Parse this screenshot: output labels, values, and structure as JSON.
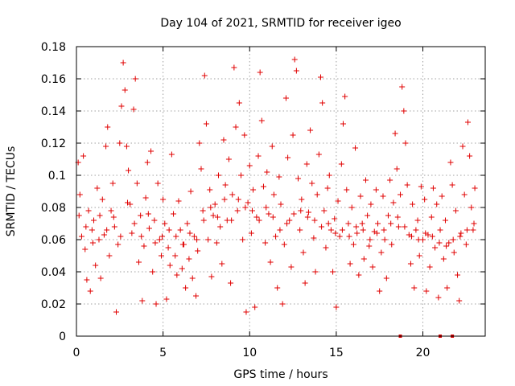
{
  "chart_data": {
    "type": "scatter",
    "title": "Day 104 of 2021, SRMTID for receiver igeo",
    "xlabel": "GPS time / hours",
    "ylabel": "SRMTID / TECUs",
    "xlim": [
      0,
      23.6
    ],
    "ylim": [
      0,
      0.18
    ],
    "x_ticks": [
      0,
      5,
      10,
      15,
      20
    ],
    "y_ticks": [
      0,
      0.02,
      0.04,
      0.06,
      0.08,
      0.1,
      0.12,
      0.14,
      0.16,
      0.18
    ],
    "y_tick_labels": [
      "0",
      "0.02",
      "0.04",
      "0.06",
      "0.08",
      "0.1",
      "0.12",
      "0.14",
      "0.16",
      "0.18"
    ],
    "grid": true,
    "marker": "plus",
    "color": "#e00000",
    "series": [
      {
        "name": "SRMTID",
        "points": [
          [
            0.1,
            0.108
          ],
          [
            0.2,
            0.088
          ],
          [
            0.3,
            0.062
          ],
          [
            0.4,
            0.112
          ],
          [
            0.5,
            0.054
          ],
          [
            0.6,
            0.035
          ],
          [
            0.7,
            0.078
          ],
          [
            0.8,
            0.028
          ],
          [
            0.9,
            0.066
          ],
          [
            1.0,
            0.072
          ],
          [
            1.1,
            0.044
          ],
          [
            1.2,
            0.092
          ],
          [
            1.3,
            0.06
          ],
          [
            1.4,
            0.036
          ],
          [
            1.5,
            0.085
          ],
          [
            1.6,
            0.063
          ],
          [
            1.7,
            0.118
          ],
          [
            1.8,
            0.13
          ],
          [
            1.9,
            0.05
          ],
          [
            2.0,
            0.078
          ],
          [
            2.1,
            0.095
          ],
          [
            2.2,
            0.068
          ],
          [
            2.3,
            0.015
          ],
          [
            2.4,
            0.057
          ],
          [
            2.5,
            0.12
          ],
          [
            2.6,
            0.143
          ],
          [
            2.7,
            0.17
          ],
          [
            2.8,
            0.153
          ],
          [
            2.9,
            0.118
          ],
          [
            3.0,
            0.103
          ],
          [
            3.1,
            0.082
          ],
          [
            3.2,
            0.064
          ],
          [
            3.3,
            0.141
          ],
          [
            3.4,
            0.16
          ],
          [
            3.5,
            0.095
          ],
          [
            3.6,
            0.046
          ],
          [
            3.7,
            0.075
          ],
          [
            3.8,
            0.022
          ],
          [
            3.9,
            0.056
          ],
          [
            4.0,
            0.086
          ],
          [
            4.1,
            0.108
          ],
          [
            4.2,
            0.067
          ],
          [
            4.3,
            0.115
          ],
          [
            4.4,
            0.04
          ],
          [
            4.5,
            0.072
          ],
          [
            4.6,
            0.02
          ],
          [
            4.7,
            0.095
          ],
          [
            4.8,
            0.06
          ],
          [
            4.9,
            0.05
          ],
          [
            5.0,
            0.085
          ],
          [
            5.1,
            0.07
          ],
          [
            5.2,
            0.023
          ],
          [
            5.3,
            0.055
          ],
          [
            5.4,
            0.044
          ],
          [
            5.5,
            0.113
          ],
          [
            5.6,
            0.076
          ],
          [
            5.7,
            0.05
          ],
          [
            5.8,
            0.038
          ],
          [
            5.9,
            0.084
          ],
          [
            6.0,
            0.066
          ],
          [
            6.1,
            0.042
          ],
          [
            6.2,
            0.057
          ],
          [
            6.3,
            0.03
          ],
          [
            6.4,
            0.07
          ],
          [
            6.5,
            0.048
          ],
          [
            6.6,
            0.09
          ],
          [
            6.7,
            0.036
          ],
          [
            6.8,
            0.062
          ],
          [
            6.9,
            0.025
          ],
          [
            7.0,
            0.053
          ],
          [
            7.1,
            0.12
          ],
          [
            7.2,
            0.104
          ],
          [
            7.3,
            0.078
          ],
          [
            7.4,
            0.162
          ],
          [
            7.5,
            0.132
          ],
          [
            7.6,
            0.06
          ],
          [
            7.7,
            0.091
          ],
          [
            7.8,
            0.037
          ],
          [
            7.9,
            0.075
          ],
          [
            8.0,
            0.082
          ],
          [
            8.1,
            0.058
          ],
          [
            8.2,
            0.1
          ],
          [
            8.3,
            0.068
          ],
          [
            8.4,
            0.045
          ],
          [
            8.5,
            0.122
          ],
          [
            8.6,
            0.094
          ],
          [
            8.7,
            0.072
          ],
          [
            8.8,
            0.11
          ],
          [
            8.9,
            0.033
          ],
          [
            9.0,
            0.088
          ],
          [
            9.1,
            0.167
          ],
          [
            9.2,
            0.13
          ],
          [
            9.3,
            0.078
          ],
          [
            9.4,
            0.145
          ],
          [
            9.5,
            0.1
          ],
          [
            9.6,
            0.06
          ],
          [
            9.7,
            0.125
          ],
          [
            9.8,
            0.015
          ],
          [
            9.9,
            0.083
          ],
          [
            10.0,
            0.106
          ],
          [
            10.1,
            0.064
          ],
          [
            10.2,
            0.091
          ],
          [
            10.3,
            0.018
          ],
          [
            10.4,
            0.074
          ],
          [
            10.5,
            0.112
          ],
          [
            10.6,
            0.164
          ],
          [
            10.7,
            0.134
          ],
          [
            10.8,
            0.093
          ],
          [
            10.9,
            0.058
          ],
          [
            11.0,
            0.102
          ],
          [
            11.1,
            0.076
          ],
          [
            11.2,
            0.046
          ],
          [
            11.3,
            0.118
          ],
          [
            11.4,
            0.088
          ],
          [
            11.5,
            0.062
          ],
          [
            11.6,
            0.03
          ],
          [
            11.7,
            0.099
          ],
          [
            11.8,
            0.082
          ],
          [
            11.9,
            0.02
          ],
          [
            12.0,
            0.057
          ],
          [
            12.1,
            0.148
          ],
          [
            12.2,
            0.111
          ],
          [
            12.3,
            0.072
          ],
          [
            12.4,
            0.043
          ],
          [
            12.5,
            0.125
          ],
          [
            12.6,
            0.172
          ],
          [
            12.7,
            0.165
          ],
          [
            12.8,
            0.098
          ],
          [
            12.9,
            0.066
          ],
          [
            13.0,
            0.085
          ],
          [
            13.1,
            0.052
          ],
          [
            13.2,
            0.033
          ],
          [
            13.3,
            0.107
          ],
          [
            13.4,
            0.077
          ],
          [
            13.5,
            0.128
          ],
          [
            13.6,
            0.095
          ],
          [
            13.7,
            0.061
          ],
          [
            13.8,
            0.04
          ],
          [
            13.9,
            0.088
          ],
          [
            14.0,
            0.113
          ],
          [
            14.1,
            0.161
          ],
          [
            14.2,
            0.145
          ],
          [
            14.3,
            0.078
          ],
          [
            14.4,
            0.055
          ],
          [
            14.5,
            0.092
          ],
          [
            14.6,
            0.1
          ],
          [
            14.7,
            0.066
          ],
          [
            14.8,
            0.04
          ],
          [
            14.9,
            0.073
          ],
          [
            15.0,
            0.018
          ],
          [
            15.1,
            0.084
          ],
          [
            15.2,
            0.062
          ],
          [
            15.3,
            0.107
          ],
          [
            15.4,
            0.132
          ],
          [
            15.5,
            0.149
          ],
          [
            15.6,
            0.091
          ],
          [
            15.7,
            0.07
          ],
          [
            15.8,
            0.045
          ],
          [
            15.9,
            0.08
          ],
          [
            16.0,
            0.057
          ],
          [
            16.1,
            0.117
          ],
          [
            16.2,
            0.064
          ],
          [
            16.3,
            0.038
          ],
          [
            16.4,
            0.087
          ],
          [
            16.5,
            0.07
          ],
          [
            16.6,
            0.048
          ],
          [
            16.7,
            0.097
          ],
          [
            16.8,
            0.075
          ],
          [
            16.9,
            0.056
          ],
          [
            17.0,
            0.082
          ],
          [
            17.1,
            0.043
          ],
          [
            17.2,
            0.065
          ],
          [
            17.3,
            0.091
          ],
          [
            17.4,
            0.07
          ],
          [
            17.5,
            0.028
          ],
          [
            17.6,
            0.052
          ],
          [
            17.7,
            0.087
          ],
          [
            17.8,
            0.06
          ],
          [
            17.9,
            0.036
          ],
          [
            18.0,
            0.075
          ],
          [
            18.1,
            0.097
          ],
          [
            18.2,
            0.057
          ],
          [
            18.3,
            0.083
          ],
          [
            18.4,
            0.126
          ],
          [
            18.5,
            0.104
          ],
          [
            18.6,
            0.068
          ],
          [
            18.7,
            0.088
          ],
          [
            18.8,
            0.155
          ],
          [
            18.9,
            0.14
          ],
          [
            19.0,
            0.12
          ],
          [
            19.1,
            0.094
          ],
          [
            19.2,
            0.063
          ],
          [
            19.3,
            0.045
          ],
          [
            19.4,
            0.082
          ],
          [
            19.5,
            0.03
          ],
          [
            19.6,
            0.066
          ],
          [
            19.7,
            0.072
          ],
          [
            19.8,
            0.05
          ],
          [
            19.9,
            0.093
          ],
          [
            20.0,
            0.06
          ],
          [
            20.1,
            0.085
          ],
          [
            20.2,
            0.028
          ],
          [
            20.3,
            0.063
          ],
          [
            20.4,
            0.043
          ],
          [
            20.5,
            0.074
          ],
          [
            20.6,
            0.092
          ],
          [
            20.7,
            0.055
          ],
          [
            20.8,
            0.082
          ],
          [
            20.9,
            0.024
          ],
          [
            21.0,
            0.066
          ],
          [
            21.1,
            0.087
          ],
          [
            21.2,
            0.048
          ],
          [
            21.3,
            0.072
          ],
          [
            21.4,
            0.03
          ],
          [
            21.5,
            0.058
          ],
          [
            21.6,
            0.108
          ],
          [
            21.7,
            0.094
          ],
          [
            21.8,
            0.052
          ],
          [
            21.9,
            0.078
          ],
          [
            22.0,
            0.038
          ],
          [
            22.1,
            0.022
          ],
          [
            22.2,
            0.064
          ],
          [
            22.3,
            0.118
          ],
          [
            22.4,
            0.088
          ],
          [
            22.5,
            0.057
          ],
          [
            22.6,
            0.133
          ],
          [
            22.7,
            0.112
          ],
          [
            22.8,
            0.08
          ],
          [
            22.9,
            0.066
          ],
          [
            23.0,
            0.092
          ],
          [
            0.15,
            0.075
          ],
          [
            0.55,
            0.068
          ],
          [
            0.95,
            0.058
          ],
          [
            1.35,
            0.075
          ],
          [
            1.75,
            0.066
          ],
          [
            2.15,
            0.074
          ],
          [
            2.55,
            0.062
          ],
          [
            2.95,
            0.083
          ],
          [
            3.35,
            0.07
          ],
          [
            3.75,
            0.062
          ],
          [
            4.15,
            0.076
          ],
          [
            4.55,
            0.058
          ],
          [
            4.95,
            0.062
          ],
          [
            5.35,
            0.066
          ],
          [
            5.75,
            0.062
          ],
          [
            6.15,
            0.057
          ],
          [
            6.55,
            0.064
          ],
          [
            6.95,
            0.06
          ],
          [
            7.35,
            0.072
          ],
          [
            7.75,
            0.08
          ],
          [
            8.15,
            0.074
          ],
          [
            8.55,
            0.085
          ],
          [
            8.95,
            0.072
          ],
          [
            9.35,
            0.085
          ],
          [
            9.75,
            0.08
          ],
          [
            10.15,
            0.078
          ],
          [
            10.55,
            0.072
          ],
          [
            10.95,
            0.08
          ],
          [
            11.35,
            0.074
          ],
          [
            11.75,
            0.066
          ],
          [
            12.15,
            0.07
          ],
          [
            12.55,
            0.076
          ],
          [
            12.95,
            0.078
          ],
          [
            13.35,
            0.074
          ],
          [
            13.75,
            0.072
          ],
          [
            14.15,
            0.068
          ],
          [
            14.55,
            0.07
          ],
          [
            14.95,
            0.064
          ],
          [
            15.35,
            0.066
          ],
          [
            15.75,
            0.062
          ],
          [
            16.15,
            0.068
          ],
          [
            16.55,
            0.066
          ],
          [
            16.95,
            0.06
          ],
          [
            17.35,
            0.064
          ],
          [
            17.75,
            0.066
          ],
          [
            18.15,
            0.07
          ],
          [
            18.55,
            0.074
          ],
          [
            18.95,
            0.068
          ],
          [
            19.35,
            0.062
          ],
          [
            19.75,
            0.06
          ],
          [
            20.15,
            0.064
          ],
          [
            20.55,
            0.062
          ],
          [
            20.95,
            0.058
          ],
          [
            21.35,
            0.056
          ],
          [
            21.75,
            0.06
          ],
          [
            22.15,
            0.062
          ],
          [
            22.55,
            0.066
          ],
          [
            22.95,
            0.07
          ],
          [
            18.7,
            0.0
          ],
          [
            21.0,
            0.0
          ],
          [
            21.7,
            0.0
          ]
        ]
      }
    ]
  }
}
